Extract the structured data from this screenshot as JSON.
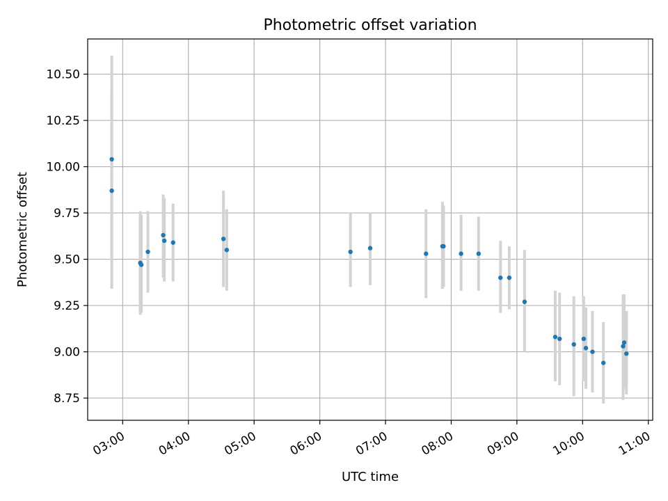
{
  "chart_data": {
    "type": "scatter",
    "title": "Photometric offset variation",
    "xlabel": "UTC time",
    "ylabel": "Photometric offset",
    "x_axis_kind": "time",
    "xlim": [
      "02:28",
      "11:04"
    ],
    "ylim": [
      8.63,
      10.69
    ],
    "grid": true,
    "x_ticks": [
      "03:00",
      "04:00",
      "05:00",
      "06:00",
      "07:00",
      "08:00",
      "09:00",
      "10:00",
      "11:00"
    ],
    "y_ticks": [
      "8.75",
      "9.00",
      "9.25",
      "9.50",
      "9.75",
      "10.00",
      "10.25",
      "10.50"
    ],
    "y_tick_values": [
      8.75,
      9.0,
      9.25,
      9.5,
      9.75,
      10.0,
      10.25,
      10.5
    ],
    "colors": {
      "point": "#1f77b4",
      "errorbar": "#d3d3d3",
      "grid": "#b0b0b0"
    },
    "series": [
      {
        "points": [
          {
            "x": "02:50",
            "y": 10.04,
            "low": 9.48,
            "high": 10.6
          },
          {
            "x": "02:50",
            "y": 9.87,
            "low": 9.34,
            "high": 10.4
          },
          {
            "x": "03:16",
            "y": 9.48,
            "low": 9.2,
            "high": 9.76
          },
          {
            "x": "03:17",
            "y": 9.47,
            "low": 9.21,
            "high": 9.74
          },
          {
            "x": "03:23",
            "y": 9.54,
            "low": 9.32,
            "high": 9.76
          },
          {
            "x": "03:37",
            "y": 9.63,
            "low": 9.4,
            "high": 9.85
          },
          {
            "x": "03:38",
            "y": 9.6,
            "low": 9.38,
            "high": 9.83
          },
          {
            "x": "03:46",
            "y": 9.59,
            "low": 9.38,
            "high": 9.8
          },
          {
            "x": "04:32",
            "y": 9.61,
            "low": 9.35,
            "high": 9.87
          },
          {
            "x": "04:35",
            "y": 9.55,
            "low": 9.33,
            "high": 9.77
          },
          {
            "x": "06:28",
            "y": 9.54,
            "low": 9.35,
            "high": 9.75
          },
          {
            "x": "06:46",
            "y": 9.56,
            "low": 9.36,
            "high": 9.75
          },
          {
            "x": "07:37",
            "y": 9.53,
            "low": 9.29,
            "high": 9.77
          },
          {
            "x": "07:52",
            "y": 9.57,
            "low": 9.34,
            "high": 9.81
          },
          {
            "x": "07:53",
            "y": 9.57,
            "low": 9.35,
            "high": 9.79
          },
          {
            "x": "08:09",
            "y": 9.53,
            "low": 9.33,
            "high": 9.74
          },
          {
            "x": "08:25",
            "y": 9.53,
            "low": 9.33,
            "high": 9.73
          },
          {
            "x": "08:45",
            "y": 9.4,
            "low": 9.21,
            "high": 9.6
          },
          {
            "x": "08:53",
            "y": 9.4,
            "low": 9.23,
            "high": 9.57
          },
          {
            "x": "09:07",
            "y": 9.27,
            "low": 9.0,
            "high": 9.55
          },
          {
            "x": "09:35",
            "y": 9.08,
            "low": 8.84,
            "high": 9.33
          },
          {
            "x": "09:39",
            "y": 9.07,
            "low": 8.82,
            "high": 9.32
          },
          {
            "x": "09:52",
            "y": 9.04,
            "low": 8.76,
            "high": 9.3
          },
          {
            "x": "10:01",
            "y": 9.07,
            "low": 8.84,
            "high": 9.3
          },
          {
            "x": "10:03",
            "y": 9.02,
            "low": 8.8,
            "high": 9.24
          },
          {
            "x": "10:09",
            "y": 9.0,
            "low": 8.78,
            "high": 9.22
          },
          {
            "x": "10:19",
            "y": 8.94,
            "low": 8.72,
            "high": 9.16
          },
          {
            "x": "10:37",
            "y": 9.03,
            "low": 8.74,
            "high": 9.31
          },
          {
            "x": "10:38",
            "y": 9.05,
            "low": 8.8,
            "high": 9.31
          },
          {
            "x": "10:40",
            "y": 8.99,
            "low": 8.77,
            "high": 9.22
          }
        ]
      }
    ]
  }
}
